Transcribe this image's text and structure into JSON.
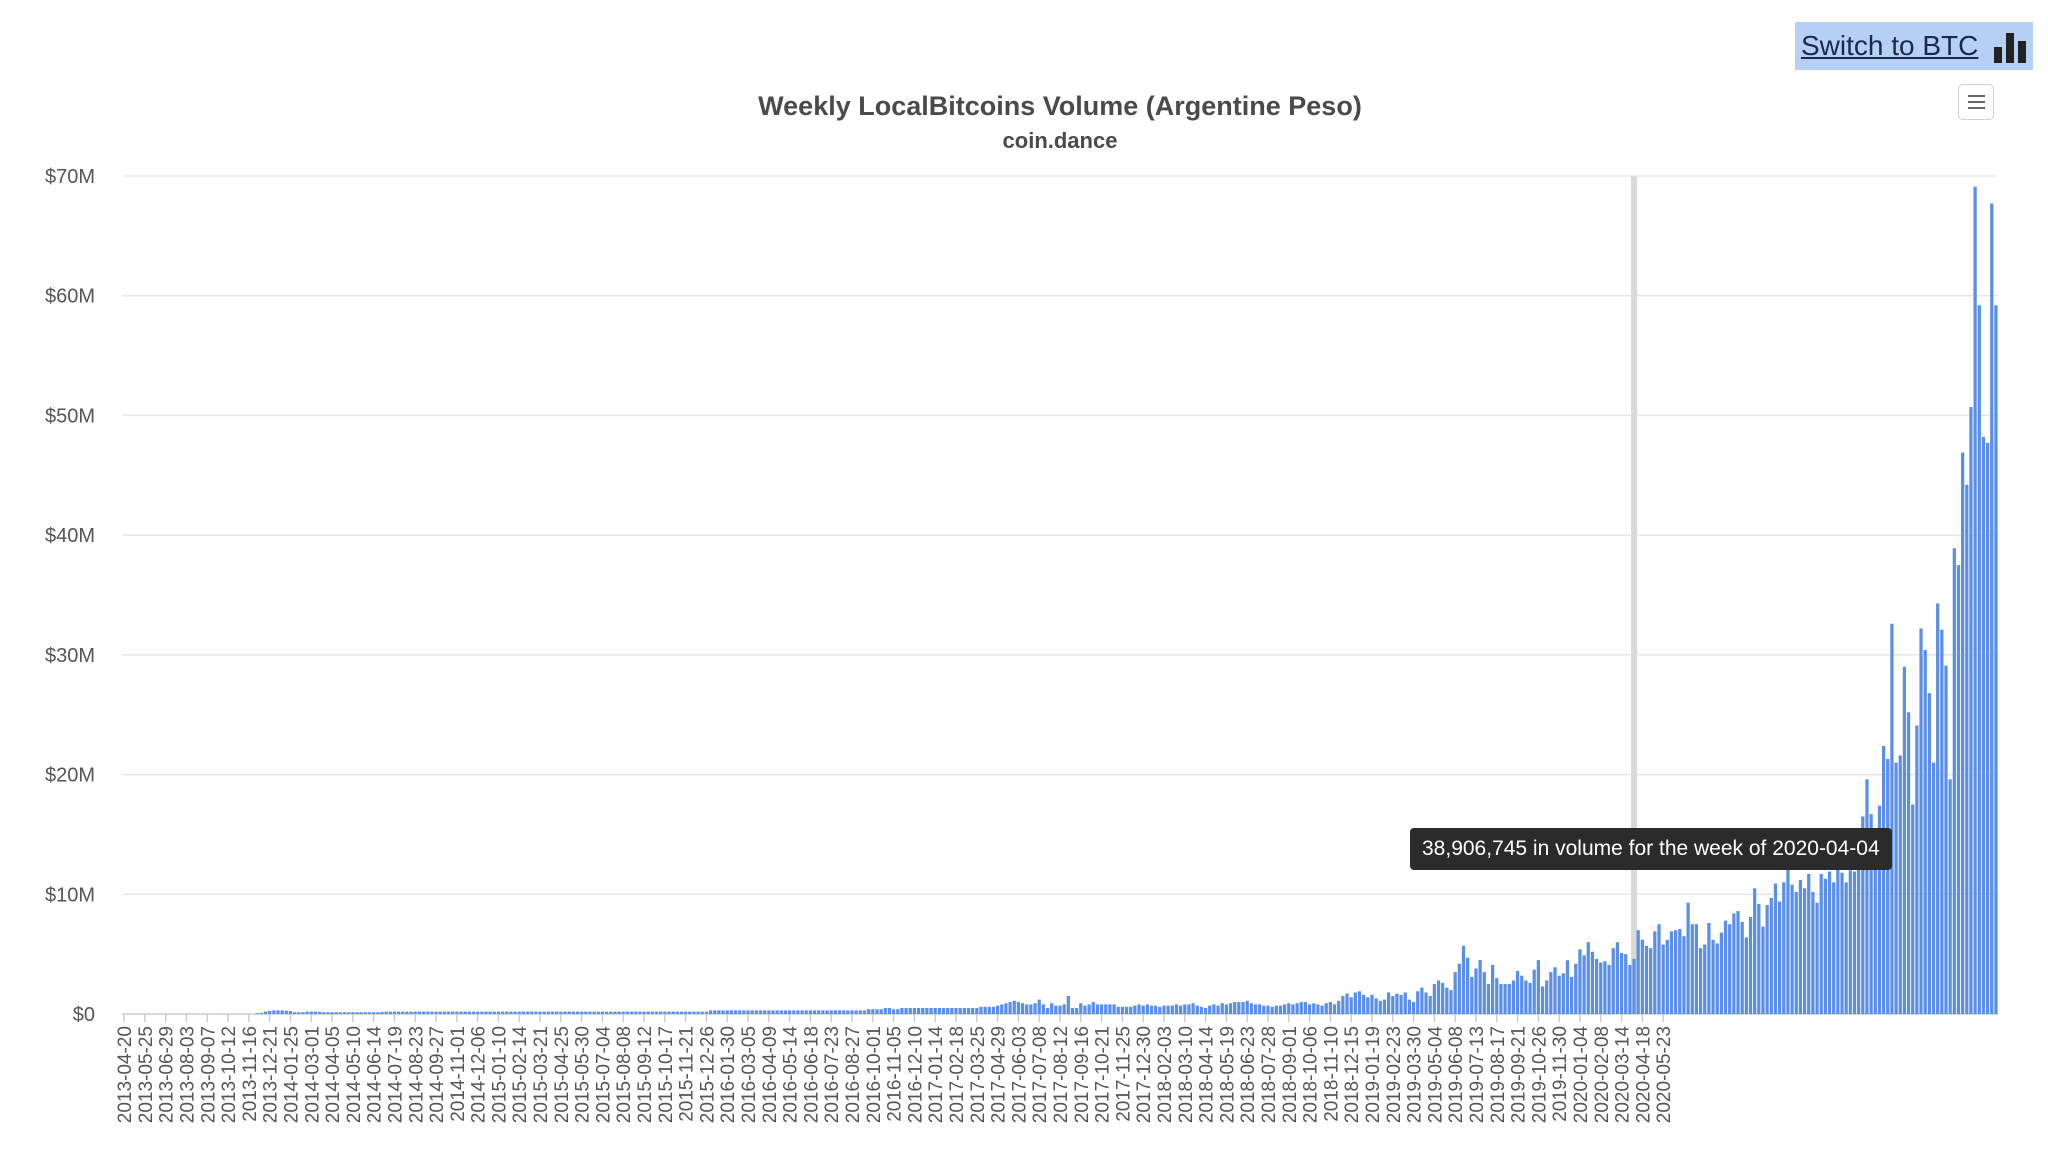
{
  "switch_button": {
    "label": "Switch to BTC",
    "icon": "bar-chart-icon"
  },
  "menu_button": {
    "icon": "hamburger-menu-icon"
  },
  "tooltip": {
    "text": "38,906,745 in volume for the week of 2020-04-04"
  },
  "chart_data": {
    "type": "bar",
    "title": "Weekly LocalBitcoins Volume (Argentine Peso)",
    "subtitle": "coin.dance",
    "xlabel": "",
    "ylabel": "",
    "ylim": [
      0,
      70000000
    ],
    "grid": true,
    "bar_color": "#5b8fe6",
    "hover_color": "#d9d9d9",
    "y_ticks": [
      {
        "value": 0,
        "label": "$0"
      },
      {
        "value": 10000000,
        "label": "$10M"
      },
      {
        "value": 20000000,
        "label": "$20M"
      },
      {
        "value": 30000000,
        "label": "$30M"
      },
      {
        "value": 40000000,
        "label": "$40M"
      },
      {
        "value": 50000000,
        "label": "$50M"
      },
      {
        "value": 60000000,
        "label": "$60M"
      },
      {
        "value": 70000000,
        "label": "$70M"
      }
    ],
    "x_tick_labels": [
      "2013-04-20",
      "2013-05-25",
      "2013-06-29",
      "2013-08-03",
      "2013-09-07",
      "2013-10-12",
      "2013-11-16",
      "2013-12-21",
      "2014-01-25",
      "2014-03-01",
      "2014-04-05",
      "2014-05-10",
      "2014-06-14",
      "2014-07-19",
      "2014-08-23",
      "2014-09-27",
      "2014-11-01",
      "2014-12-06",
      "2015-01-10",
      "2015-02-14",
      "2015-03-21",
      "2015-04-25",
      "2015-05-30",
      "2015-07-04",
      "2015-08-08",
      "2015-09-12",
      "2015-10-17",
      "2015-11-21",
      "2015-12-26",
      "2016-01-30",
      "2016-03-05",
      "2016-04-09",
      "2016-05-14",
      "2016-06-18",
      "2016-07-23",
      "2016-08-27",
      "2016-10-01",
      "2016-11-05",
      "2016-12-10",
      "2017-01-14",
      "2017-02-18",
      "2017-03-25",
      "2017-04-29",
      "2017-06-03",
      "2017-07-08",
      "2017-08-12",
      "2017-09-16",
      "2017-10-21",
      "2017-11-25",
      "2017-12-30",
      "2018-02-03",
      "2018-03-10",
      "2018-04-14",
      "2018-05-19",
      "2018-06-23",
      "2018-07-28",
      "2018-09-01",
      "2018-10-06",
      "2018-11-10",
      "2018-12-15",
      "2019-01-19",
      "2019-02-23",
      "2019-03-30",
      "2019-05-04",
      "2019-06-08",
      "2019-07-13",
      "2019-08-17",
      "2019-09-21",
      "2019-10-26",
      "2019-11-30",
      "2020-01-04",
      "2020-02-08",
      "2020-03-14",
      "2020-04-18",
      "2020-05-23"
    ],
    "x_start": "2013-04-20",
    "x_interval": "week",
    "hovered_week": "2020-04-04",
    "values": [
      0,
      0,
      0,
      0,
      0,
      0,
      0,
      0,
      0,
      0,
      0,
      0,
      0,
      0,
      0,
      0,
      0,
      0,
      0,
      0,
      0,
      0,
      0,
      0,
      0,
      0,
      0,
      0,
      0,
      0,
      0,
      0,
      50000,
      100000,
      200000,
      250000,
      300000,
      300000,
      300000,
      280000,
      250000,
      150000,
      150000,
      150000,
      200000,
      200000,
      200000,
      180000,
      150000,
      150000,
      150000,
      150000,
      150000,
      150000,
      150000,
      150000,
      150000,
      150000,
      150000,
      150000,
      150000,
      150000,
      180000,
      200000,
      200000,
      200000,
      200000,
      200000,
      200000,
      200000,
      200000,
      200000,
      200000,
      200000,
      200000,
      200000,
      200000,
      200000,
      200000,
      200000,
      200000,
      200000,
      200000,
      200000,
      200000,
      200000,
      200000,
      200000,
      200000,
      200000,
      200000,
      200000,
      200000,
      200000,
      200000,
      200000,
      200000,
      200000,
      200000,
      200000,
      200000,
      200000,
      200000,
      200000,
      200000,
      200000,
      200000,
      200000,
      200000,
      200000,
      200000,
      200000,
      200000,
      200000,
      200000,
      200000,
      200000,
      200000,
      200000,
      200000,
      200000,
      200000,
      200000,
      200000,
      200000,
      200000,
      200000,
      200000,
      200000,
      200000,
      200000,
      200000,
      200000,
      200000,
      200000,
      200000,
      200000,
      200000,
      200000,
      200000,
      200000,
      300000,
      300000,
      300000,
      300000,
      300000,
      300000,
      300000,
      300000,
      300000,
      300000,
      300000,
      300000,
      300000,
      300000,
      300000,
      300000,
      300000,
      300000,
      300000,
      300000,
      300000,
      300000,
      300000,
      300000,
      300000,
      300000,
      300000,
      300000,
      300000,
      300000,
      300000,
      300000,
      300000,
      300000,
      300000,
      300000,
      300000,
      300000,
      400000,
      400000,
      400000,
      400000,
      500000,
      500000,
      400000,
      400000,
      500000,
      500000,
      500000,
      500000,
      500000,
      500000,
      500000,
      500000,
      500000,
      500000,
      500000,
      500000,
      500000,
      500000,
      500000,
      500000,
      500000,
      500000,
      500000,
      600000,
      600000,
      600000,
      600000,
      700000,
      800000,
      900000,
      1000000,
      1100000,
      1000000,
      900000,
      800000,
      800000,
      900000,
      1200000,
      800000,
      500000,
      900000,
      700000,
      700000,
      800000,
      1500000,
      500000,
      500000,
      900000,
      700000,
      800000,
      1000000,
      800000,
      800000,
      800000,
      800000,
      800000,
      600000,
      600000,
      600000,
      600000,
      700000,
      800000,
      700000,
      800000,
      700000,
      700000,
      600000,
      700000,
      700000,
      700000,
      800000,
      700000,
      800000,
      800000,
      900000,
      700000,
      600000,
      500000,
      700000,
      800000,
      700000,
      900000,
      800000,
      900000,
      1000000,
      1000000,
      1000000,
      1100000,
      900000,
      800000,
      800000,
      700000,
      700000,
      600000,
      700000,
      700000,
      800000,
      900000,
      800000,
      900000,
      1000000,
      1000000,
      800000,
      900000,
      800000,
      700000,
      900000,
      1000000,
      800000,
      1100000,
      1500000,
      1700000,
      1400000,
      1800000,
      1900000,
      1600000,
      1400000,
      1600000,
      1300000,
      1100000,
      1200000,
      1800000,
      1500000,
      1700000,
      1600000,
      1800000,
      1200000,
      1000000,
      1900000,
      2200000,
      1800000,
      1500000,
      2500000,
      2800000,
      2600000,
      2200000,
      2000000,
      3500000,
      4200000,
      5700000,
      4700000,
      3100000,
      3800000,
      4500000,
      3500000,
      2500000,
      4100000,
      3000000,
      2500000,
      2500000,
      2500000,
      2800000,
      3600000,
      3200000,
      2800000,
      2600000,
      3700000,
      4500000,
      2300000,
      2800000,
      3500000,
      3900000,
      3200000,
      3400000,
      4500000,
      3100000,
      4200000,
      5400000,
      4900000,
      6000000,
      5200000,
      4600000,
      4300000,
      4400000,
      4100000,
      5500000,
      6000000,
      5100000,
      5000000,
      4100000,
      4600000,
      7000000,
      6200000,
      5700000,
      5500000,
      6900000,
      7500000,
      5800000,
      6200000,
      6900000,
      7000000,
      7100000,
      6500000,
      9300000,
      7500000,
      7500000,
      5500000,
      5800000,
      7600000,
      6200000,
      5900000,
      6800000,
      7800000,
      7500000,
      8400000,
      8600000,
      7700000,
      6400000,
      8100000,
      10500000,
      9200000,
      7300000,
      9100000,
      9700000,
      10900000,
      9400000,
      11000000,
      12400000,
      10800000,
      10200000,
      11200000,
      10500000,
      11700000,
      10200000,
      9300000,
      11700000,
      11300000,
      11900000,
      11000000,
      12100000,
      11800000,
      11000000,
      12000000,
      11900000,
      12500000,
      16500000,
      19600000,
      16700000,
      14400000,
      17400000,
      22400000,
      21300000,
      32600000,
      21000000,
      21600000,
      29000000,
      25200000,
      17500000,
      24100000,
      32200000,
      30400000,
      26800000,
      21000000,
      34300000,
      32100000,
      29100000,
      19600000,
      38906745,
      37500000,
      46900000,
      44200000,
      50700000,
      69100000,
      59200000,
      48200000,
      47700000,
      67700000,
      59200000
    ]
  }
}
